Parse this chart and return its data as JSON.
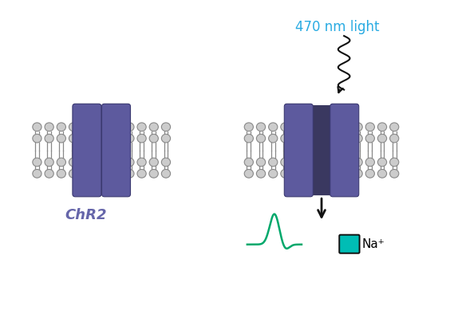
{
  "bg_color": "#ffffff",
  "purple_color": "#5d5a9e",
  "channel_open_color": "#3a3860",
  "membrane_color": "#888888",
  "membrane_fill": "#cccccc",
  "green_color": "#00a86b",
  "teal_color": "#00bdb5",
  "teal_border": "#111111",
  "light_blue": "#29abe2",
  "arrow_color": "#111111",
  "chr2_color": "#6666aa",
  "chr2_label": "ChR2",
  "na_label": "Na⁺",
  "light_label": "470 nm light",
  "figsize": [
    5.64,
    3.94
  ],
  "dpi": 100
}
